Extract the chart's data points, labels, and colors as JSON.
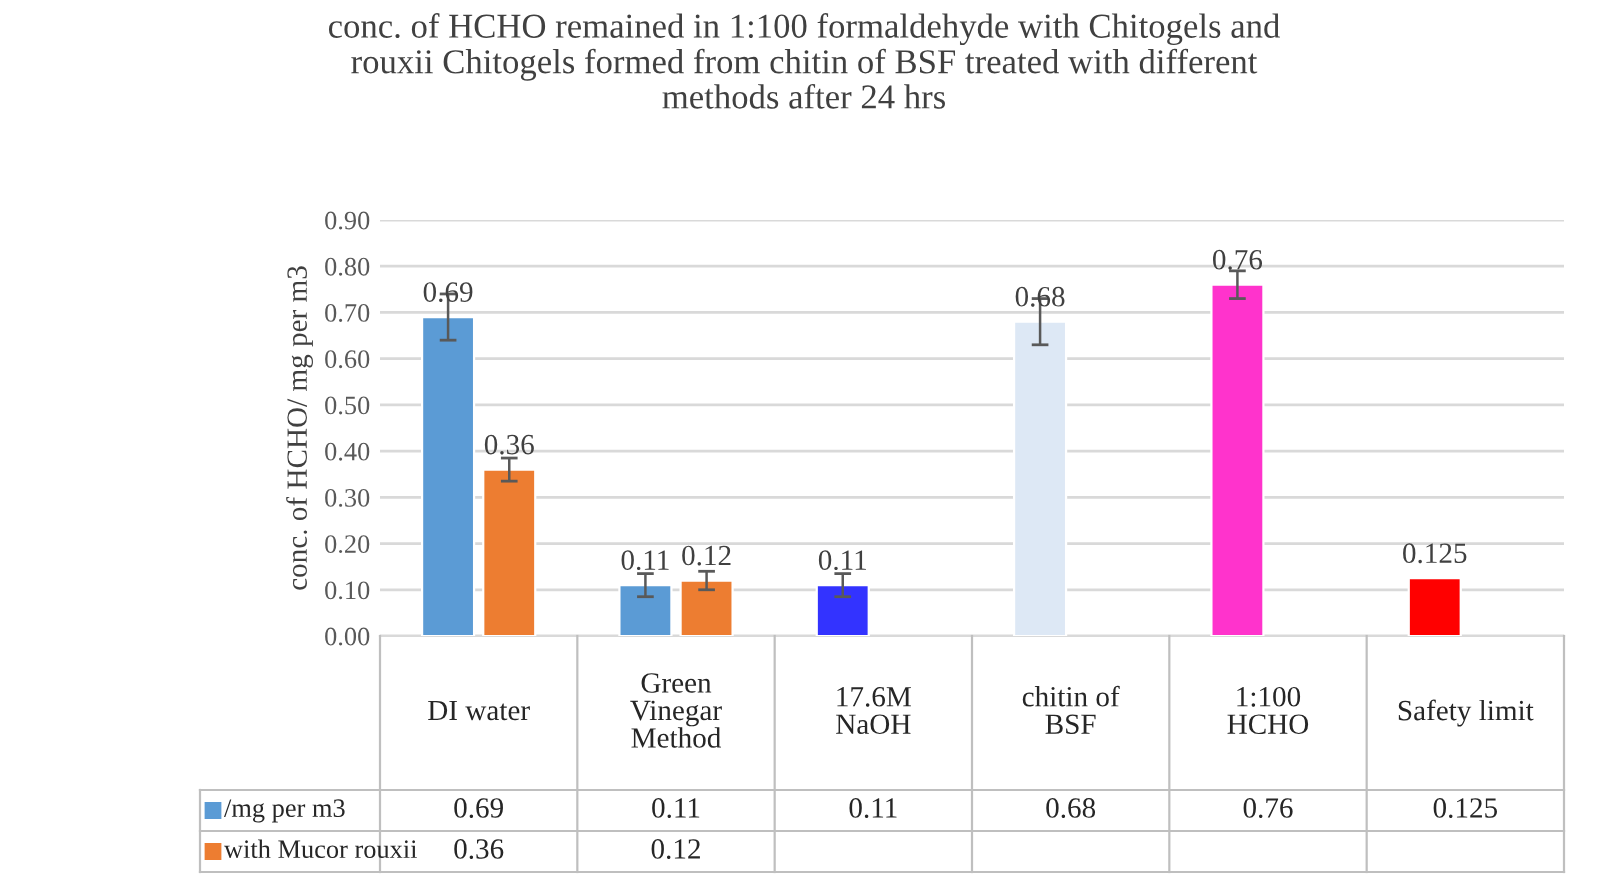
{
  "chart_data": {
    "type": "bar",
    "title": "conc. of HCHO remained in 1:100 formaldehyde with Chitogels and\nrouxii Chitogels formed from chitin of BSF treated with different\nmethods after 24 hrs",
    "ylabel": "conc. of HCHO/ mg per m3",
    "categories": [
      "DI water",
      "Green\nVinegar\nMethod",
      "17.6M\nNaOH",
      "chitin of\nBSF",
      "1:100\nHCHO",
      "Safety limit"
    ],
    "series": [
      {
        "name": "/mg per m3",
        "color": "#5b9bd5",
        "colors": [
          "#5b9bd5",
          "#5b9bd5",
          "#3333ff",
          "#dde8f5",
          "#ff33cc",
          "#ff0000"
        ],
        "values": [
          0.69,
          0.11,
          0.11,
          0.68,
          0.76,
          0.125
        ],
        "value_labels": [
          "0.69",
          "0.11",
          "0.11",
          "0.68",
          "0.76",
          "0.125"
        ],
        "errors": [
          0.05,
          0.025,
          0.025,
          0.05,
          0.03,
          null
        ]
      },
      {
        "name": "with Mucor rouxii",
        "color": "#ed7d31",
        "values": [
          0.36,
          0.12,
          null,
          null,
          null,
          null
        ],
        "value_labels": [
          "0.36",
          "0.12",
          null,
          null,
          null,
          null
        ],
        "errors": [
          0.025,
          0.02,
          null,
          null,
          null,
          null
        ]
      }
    ],
    "ylim": [
      0,
      0.9
    ],
    "yticks": [
      {
        "value": 0,
        "label": "0.00"
      },
      {
        "value": 0.1,
        "label": "0.10"
      },
      {
        "value": 0.2,
        "label": "0.20"
      },
      {
        "value": 0.3,
        "label": "0.30"
      },
      {
        "value": 0.4,
        "label": "0.40"
      },
      {
        "value": 0.5,
        "label": "0.50"
      },
      {
        "value": 0.6,
        "label": "0.60"
      },
      {
        "value": 0.7,
        "label": "0.70"
      },
      {
        "value": 0.8,
        "label": "0.80"
      },
      {
        "value": 0.9,
        "label": "0.90"
      }
    ],
    "grid": "y",
    "data_labels": true,
    "legend": "bottom",
    "annotations": [
      "0.69",
      "0.11",
      "0.11",
      "0.68",
      "0.76",
      "0.125",
      "0.36",
      "0.12"
    ]
  }
}
